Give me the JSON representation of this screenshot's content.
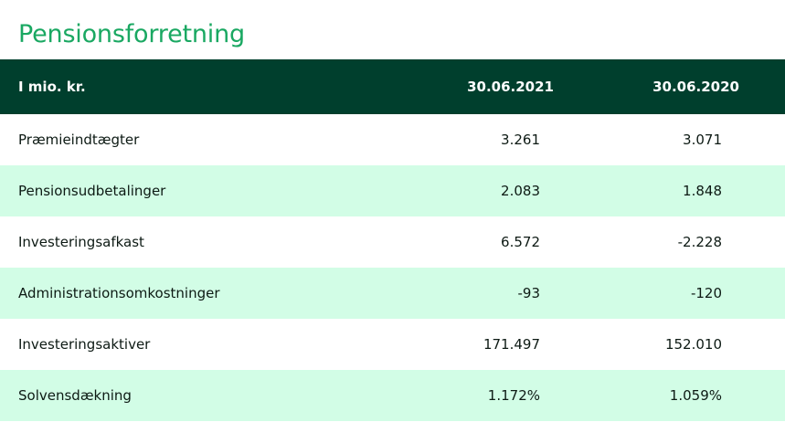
{
  "title": "Pensionsforretning",
  "header": {
    "label": "I mio. kr.",
    "col1": "30.06.2021",
    "col2": "30.06.2020"
  },
  "rows": [
    {
      "label": "Præmieindtægter",
      "v2021": "3.261",
      "v2020": "3.071"
    },
    {
      "label": "Pensionsudbetalinger",
      "v2021": "2.083",
      "v2020": "1.848"
    },
    {
      "label": "Investeringsafkast",
      "v2021": "6.572",
      "v2020": "-2.228"
    },
    {
      "label": "Administrationsomkostninger",
      "v2021": "-93",
      "v2020": "-120"
    },
    {
      "label": "Investeringsaktiver",
      "v2021": "171.497",
      "v2020": "152.010"
    },
    {
      "label": "Solvensdækning",
      "v2021": "1.172%",
      "v2020": "1.059%"
    }
  ],
  "colors": {
    "title": "#1aa862",
    "header_bg": "#003f2d",
    "alt_row_bg": "#d2fde6"
  }
}
